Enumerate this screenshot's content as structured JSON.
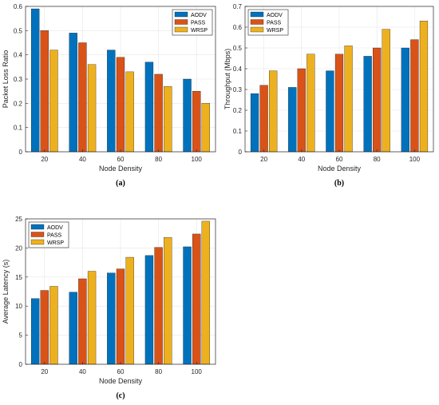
{
  "chart_data": [
    {
      "type": "bar",
      "caption": "(a)",
      "categories": [
        "20",
        "40",
        "60",
        "80",
        "100"
      ],
      "series": [
        {
          "name": "AODV",
          "values": [
            0.59,
            0.49,
            0.42,
            0.37,
            0.3
          ]
        },
        {
          "name": "PASS",
          "values": [
            0.5,
            0.45,
            0.39,
            0.32,
            0.25
          ]
        },
        {
          "name": "WRSP",
          "values": [
            0.42,
            0.36,
            0.33,
            0.27,
            0.2
          ]
        }
      ],
      "xlabel": "Node Density",
      "ylabel": "Packet Loss Ratio",
      "ylim": [
        0,
        0.6
      ],
      "yticks": [
        "0",
        "0.1",
        "0.2",
        "0.3",
        "0.4",
        "0.5",
        "0.6"
      ],
      "grid": true,
      "legend": "top-right"
    },
    {
      "type": "bar",
      "caption": "(b)",
      "categories": [
        "20",
        "40",
        "60",
        "80",
        "100"
      ],
      "series": [
        {
          "name": "AODV",
          "values": [
            0.28,
            0.31,
            0.39,
            0.46,
            0.5
          ]
        },
        {
          "name": "PASS",
          "values": [
            0.32,
            0.4,
            0.47,
            0.5,
            0.54
          ]
        },
        {
          "name": "WRSP",
          "values": [
            0.39,
            0.47,
            0.51,
            0.59,
            0.63
          ]
        }
      ],
      "xlabel": "Node Density",
      "ylabel": "Throughput (Mbps)",
      "ylim": [
        0,
        0.7
      ],
      "yticks": [
        "0",
        "0.1",
        "0.2",
        "0.3",
        "0.4",
        "0.5",
        "0.6",
        "0.7"
      ],
      "grid": true,
      "legend": "top-left"
    },
    {
      "type": "bar",
      "caption": "(c)",
      "categories": [
        "20",
        "40",
        "60",
        "80",
        "100"
      ],
      "series": [
        {
          "name": "AODV",
          "values": [
            11.3,
            12.4,
            15.7,
            18.7,
            20.2
          ]
        },
        {
          "name": "PASS",
          "values": [
            12.7,
            14.7,
            16.4,
            20.1,
            22.4
          ]
        },
        {
          "name": "WRSP",
          "values": [
            13.4,
            16.0,
            18.4,
            21.8,
            24.6
          ]
        }
      ],
      "xlabel": "Node Density",
      "ylabel": "Average Latency (s)",
      "ylim": [
        0,
        25
      ],
      "yticks": [
        "0",
        "5",
        "10",
        "15",
        "20",
        "25"
      ],
      "grid": true,
      "legend": "top-left"
    }
  ],
  "colors": {
    "series": [
      "#0072BD",
      "#D95319",
      "#EDB120"
    ],
    "grid": "#e6e6e6",
    "axis": "#262626"
  }
}
